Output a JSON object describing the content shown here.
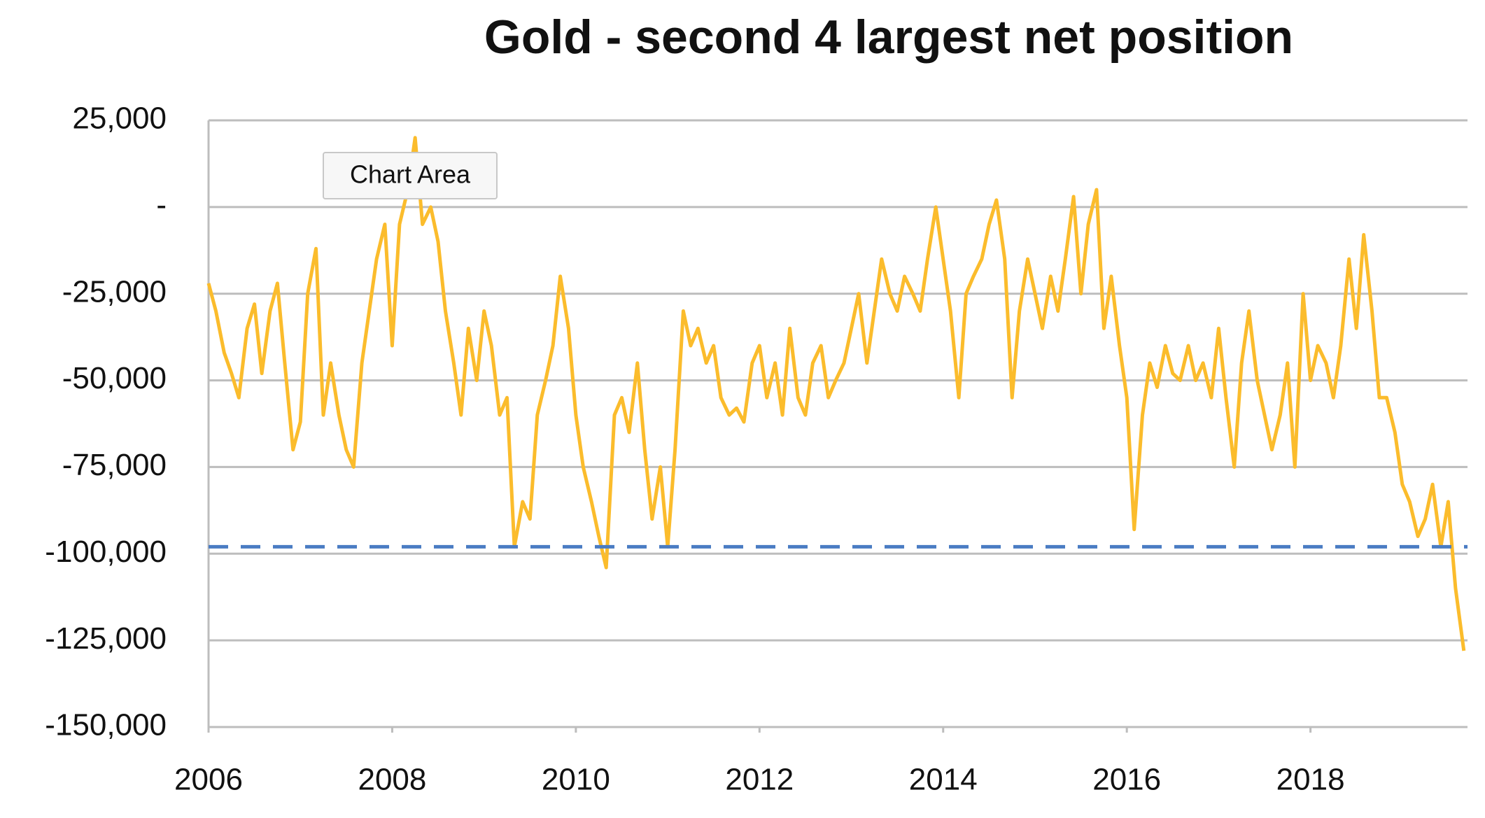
{
  "chart_data": {
    "type": "line",
    "title": "Gold - second 4 largest net position",
    "x": [
      2006.0,
      2006.08,
      2006.17,
      2006.25,
      2006.33,
      2006.42,
      2006.5,
      2006.58,
      2006.67,
      2006.75,
      2006.83,
      2006.92,
      2007.0,
      2007.08,
      2007.17,
      2007.25,
      2007.33,
      2007.42,
      2007.5,
      2007.58,
      2007.67,
      2007.75,
      2007.83,
      2007.92,
      2008.0,
      2008.08,
      2008.17,
      2008.25,
      2008.33,
      2008.42,
      2008.5,
      2008.58,
      2008.67,
      2008.75,
      2008.83,
      2008.92,
      2009.0,
      2009.08,
      2009.17,
      2009.25,
      2009.33,
      2009.42,
      2009.5,
      2009.58,
      2009.67,
      2009.75,
      2009.83,
      2009.92,
      2010.0,
      2010.08,
      2010.17,
      2010.25,
      2010.33,
      2010.42,
      2010.5,
      2010.58,
      2010.67,
      2010.75,
      2010.83,
      2010.92,
      2011.0,
      2011.08,
      2011.17,
      2011.25,
      2011.33,
      2011.42,
      2011.5,
      2011.58,
      2011.67,
      2011.75,
      2011.83,
      2011.92,
      2012.0,
      2012.08,
      2012.17,
      2012.25,
      2012.33,
      2012.42,
      2012.5,
      2012.58,
      2012.67,
      2012.75,
      2012.83,
      2012.92,
      2013.0,
      2013.08,
      2013.17,
      2013.25,
      2013.33,
      2013.42,
      2013.5,
      2013.58,
      2013.67,
      2013.75,
      2013.83,
      2013.92,
      2014.0,
      2014.08,
      2014.17,
      2014.25,
      2014.33,
      2014.42,
      2014.5,
      2014.58,
      2014.67,
      2014.75,
      2014.83,
      2014.92,
      2015.0,
      2015.08,
      2015.17,
      2015.25,
      2015.33,
      2015.42,
      2015.5,
      2015.58,
      2015.67,
      2015.75,
      2015.83,
      2015.92,
      2016.0,
      2016.08,
      2016.17,
      2016.25,
      2016.33,
      2016.42,
      2016.5,
      2016.58,
      2016.67,
      2016.75,
      2016.83,
      2016.92,
      2017.0,
      2017.08,
      2017.17,
      2017.25,
      2017.33,
      2017.42,
      2017.5,
      2017.58,
      2017.67,
      2017.75,
      2017.83,
      2017.92,
      2018.0,
      2018.08,
      2018.17,
      2018.25,
      2018.33,
      2018.42,
      2018.5,
      2018.58,
      2018.67,
      2018.75,
      2018.83,
      2018.92,
      2019.0,
      2019.08,
      2019.17,
      2019.25,
      2019.33,
      2019.42,
      2019.5,
      2019.58,
      2019.67
    ],
    "series": [
      {
        "color": "#fbbc2c",
        "values": [
          -22000,
          -30000,
          -42000,
          -48000,
          -55000,
          -35000,
          -28000,
          -48000,
          -30000,
          -22000,
          -45000,
          -70000,
          -62000,
          -25000,
          -12000,
          -60000,
          -45000,
          -60000,
          -70000,
          -75000,
          -45000,
          -30000,
          -15000,
          -5000,
          -40000,
          -5000,
          5000,
          20000,
          -5000,
          0,
          -10000,
          -30000,
          -45000,
          -60000,
          -35000,
          -50000,
          -30000,
          -40000,
          -60000,
          -55000,
          -98000,
          -85000,
          -90000,
          -60000,
          -50000,
          -40000,
          -20000,
          -35000,
          -60000,
          -75000,
          -85000,
          -95000,
          -104000,
          -60000,
          -55000,
          -65000,
          -45000,
          -70000,
          -90000,
          -75000,
          -98000,
          -70000,
          -30000,
          -40000,
          -35000,
          -45000,
          -40000,
          -55000,
          -60000,
          -58000,
          -62000,
          -45000,
          -40000,
          -55000,
          -45000,
          -60000,
          -35000,
          -55000,
          -60000,
          -45000,
          -40000,
          -55000,
          -50000,
          -45000,
          -35000,
          -25000,
          -45000,
          -30000,
          -15000,
          -25000,
          -30000,
          -20000,
          -25000,
          -30000,
          -15000,
          0,
          -15000,
          -30000,
          -55000,
          -25000,
          -20000,
          -15000,
          -5000,
          2000,
          -15000,
          -55000,
          -30000,
          -15000,
          -25000,
          -35000,
          -20000,
          -30000,
          -15000,
          3000,
          -25000,
          -5000,
          5000,
          -35000,
          -20000,
          -40000,
          -55000,
          -93000,
          -60000,
          -45000,
          -52000,
          -40000,
          -48000,
          -50000,
          -40000,
          -50000,
          -45000,
          -55000,
          -35000,
          -55000,
          -75000,
          -45000,
          -30000,
          -50000,
          -60000,
          -70000,
          -60000,
          -45000,
          -75000,
          -25000,
          -50000,
          -40000,
          -45000,
          -55000,
          -40000,
          -15000,
          -35000,
          -8000,
          -30000,
          -55000,
          -55000,
          -65000,
          -80000,
          -85000,
          -95000,
          -90000,
          -80000,
          -98000,
          -85000,
          -110000,
          -128000
        ]
      }
    ],
    "reference_line": {
      "y": -98000,
      "color": "#4a7cc3",
      "dashed": true
    },
    "xlim": [
      2006,
      2019.71
    ],
    "xticks": [
      2006,
      2008,
      2010,
      2012,
      2014,
      2016,
      2018
    ],
    "ylim": [
      -150000,
      25000
    ],
    "yticks": [
      {
        "value": -150000,
        "label": "-150,000"
      },
      {
        "value": -125000,
        "label": "-125,000"
      },
      {
        "value": -100000,
        "label": "-100,000"
      },
      {
        "value": -75000,
        "label": "-75,000"
      },
      {
        "value": -50000,
        "label": "-50,000"
      },
      {
        "value": -25000,
        "label": "-25,000"
      },
      {
        "value": 0,
        "label": "-"
      },
      {
        "value": 25000,
        "label": "25,000"
      }
    ],
    "grid": true,
    "tooltip": "Chart Area"
  }
}
